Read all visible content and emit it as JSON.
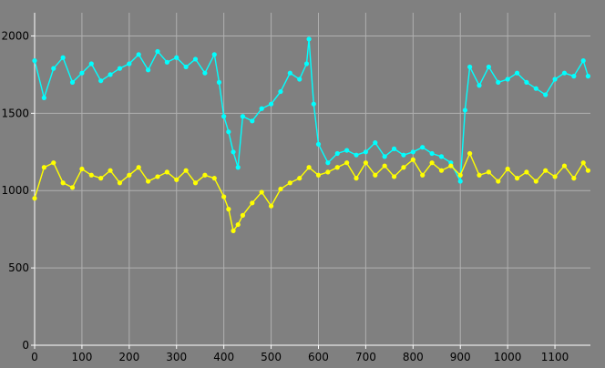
{
  "chart_data": {
    "type": "line",
    "title": "",
    "xlabel": "",
    "ylabel": "",
    "xlim": [
      0,
      1175
    ],
    "ylim": [
      0,
      2150
    ],
    "x_ticks": [
      0,
      100,
      200,
      300,
      400,
      500,
      600,
      700,
      800,
      900,
      1000,
      1100
    ],
    "y_ticks": [
      0,
      500,
      1000,
      1500,
      2000
    ],
    "grid": true,
    "background_color": "#808080",
    "grid_color": "#b0b0b0",
    "axis_color": "#ffffff",
    "marker": "circle",
    "series": [
      {
        "color": "#00ffff",
        "points": [
          [
            0,
            1840
          ],
          [
            20,
            1600
          ],
          [
            40,
            1790
          ],
          [
            60,
            1860
          ],
          [
            80,
            1700
          ],
          [
            100,
            1760
          ],
          [
            120,
            1820
          ],
          [
            140,
            1710
          ],
          [
            160,
            1750
          ],
          [
            180,
            1790
          ],
          [
            200,
            1820
          ],
          [
            220,
            1880
          ],
          [
            240,
            1780
          ],
          [
            260,
            1900
          ],
          [
            280,
            1830
          ],
          [
            300,
            1860
          ],
          [
            320,
            1800
          ],
          [
            340,
            1850
          ],
          [
            360,
            1760
          ],
          [
            380,
            1880
          ],
          [
            390,
            1700
          ],
          [
            400,
            1480
          ],
          [
            410,
            1380
          ],
          [
            420,
            1250
          ],
          [
            430,
            1150
          ],
          [
            440,
            1480
          ],
          [
            460,
            1450
          ],
          [
            480,
            1530
          ],
          [
            500,
            1560
          ],
          [
            520,
            1640
          ],
          [
            540,
            1760
          ],
          [
            560,
            1720
          ],
          [
            575,
            1820
          ],
          [
            580,
            1980
          ],
          [
            590,
            1560
          ],
          [
            600,
            1300
          ],
          [
            620,
            1180
          ],
          [
            640,
            1240
          ],
          [
            660,
            1260
          ],
          [
            680,
            1230
          ],
          [
            700,
            1250
          ],
          [
            720,
            1310
          ],
          [
            740,
            1220
          ],
          [
            760,
            1270
          ],
          [
            780,
            1230
          ],
          [
            800,
            1250
          ],
          [
            820,
            1280
          ],
          [
            840,
            1240
          ],
          [
            860,
            1220
          ],
          [
            880,
            1180
          ],
          [
            900,
            1060
          ],
          [
            910,
            1520
          ],
          [
            920,
            1800
          ],
          [
            940,
            1680
          ],
          [
            960,
            1800
          ],
          [
            980,
            1700
          ],
          [
            1000,
            1720
          ],
          [
            1020,
            1760
          ],
          [
            1040,
            1700
          ],
          [
            1060,
            1660
          ],
          [
            1080,
            1620
          ],
          [
            1100,
            1720
          ],
          [
            1120,
            1760
          ],
          [
            1140,
            1740
          ],
          [
            1160,
            1840
          ],
          [
            1170,
            1740
          ]
        ]
      },
      {
        "color": "#ffff00",
        "points": [
          [
            0,
            950
          ],
          [
            20,
            1150
          ],
          [
            40,
            1180
          ],
          [
            60,
            1050
          ],
          [
            80,
            1020
          ],
          [
            100,
            1140
          ],
          [
            120,
            1100
          ],
          [
            140,
            1080
          ],
          [
            160,
            1130
          ],
          [
            180,
            1050
          ],
          [
            200,
            1100
          ],
          [
            220,
            1150
          ],
          [
            240,
            1060
          ],
          [
            260,
            1090
          ],
          [
            280,
            1120
          ],
          [
            300,
            1070
          ],
          [
            320,
            1130
          ],
          [
            340,
            1050
          ],
          [
            360,
            1100
          ],
          [
            380,
            1080
          ],
          [
            400,
            960
          ],
          [
            410,
            880
          ],
          [
            420,
            740
          ],
          [
            430,
            780
          ],
          [
            440,
            840
          ],
          [
            460,
            920
          ],
          [
            480,
            990
          ],
          [
            500,
            900
          ],
          [
            520,
            1010
          ],
          [
            540,
            1050
          ],
          [
            560,
            1080
          ],
          [
            580,
            1150
          ],
          [
            600,
            1100
          ],
          [
            620,
            1120
          ],
          [
            640,
            1150
          ],
          [
            660,
            1180
          ],
          [
            680,
            1080
          ],
          [
            700,
            1180
          ],
          [
            720,
            1100
          ],
          [
            740,
            1160
          ],
          [
            760,
            1090
          ],
          [
            780,
            1150
          ],
          [
            800,
            1200
          ],
          [
            820,
            1100
          ],
          [
            840,
            1180
          ],
          [
            860,
            1130
          ],
          [
            880,
            1160
          ],
          [
            900,
            1100
          ],
          [
            920,
            1240
          ],
          [
            940,
            1100
          ],
          [
            960,
            1120
          ],
          [
            980,
            1060
          ],
          [
            1000,
            1140
          ],
          [
            1020,
            1080
          ],
          [
            1040,
            1120
          ],
          [
            1060,
            1060
          ],
          [
            1080,
            1130
          ],
          [
            1100,
            1090
          ],
          [
            1120,
            1160
          ],
          [
            1140,
            1080
          ],
          [
            1160,
            1180
          ],
          [
            1170,
            1130
          ]
        ]
      }
    ]
  }
}
